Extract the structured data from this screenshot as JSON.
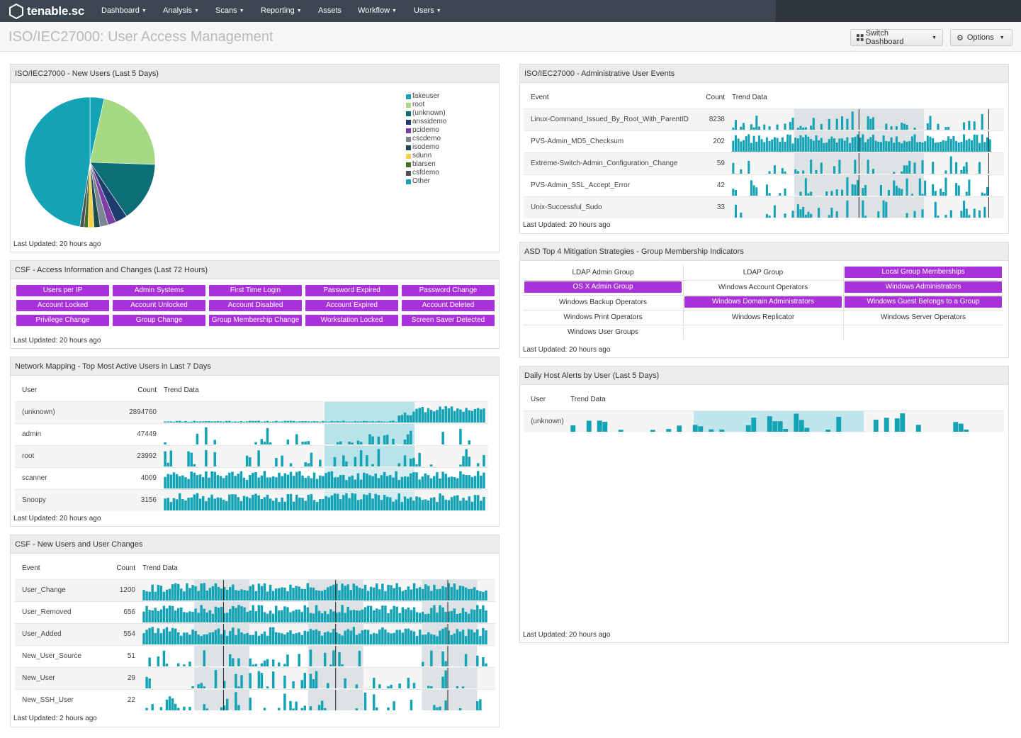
{
  "app": {
    "name": "tenable.sc"
  },
  "nav": [
    {
      "label": "Dashboard",
      "dropdown": true
    },
    {
      "label": "Analysis",
      "dropdown": true
    },
    {
      "label": "Scans",
      "dropdown": true
    },
    {
      "label": "Reporting",
      "dropdown": true
    },
    {
      "label": "Assets",
      "dropdown": false
    },
    {
      "label": "Workflow",
      "dropdown": true
    },
    {
      "label": "Users",
      "dropdown": true
    }
  ],
  "header": {
    "title": "ISO/IEC27000: User Access Management",
    "switch_label": "Switch Dashboard",
    "options_label": "Options"
  },
  "colors": {
    "accent_teal": "#14a3b4",
    "highlight_purple": "#a831d9",
    "nav_bg": "#3c4650"
  },
  "panels": {
    "new_users": {
      "title": "ISO/IEC27000 - New Users (Last 5 Days)",
      "updated": "Last Updated: 20 hours ago",
      "chart_data": {
        "type": "pie",
        "title": "",
        "series": [
          {
            "name": "fakeuser",
            "value": 3.5,
            "color": "#14a3b4"
          },
          {
            "name": "root",
            "value": 22,
            "color": "#a6d983"
          },
          {
            "name": "(unknown)",
            "value": 15,
            "color": "#0e6e77"
          },
          {
            "name": "anssidemo",
            "value": 3,
            "color": "#1e3d6e"
          },
          {
            "name": "pcidemo",
            "value": 2,
            "color": "#7c3fa6"
          },
          {
            "name": "cscdemo",
            "value": 2,
            "color": "#7a8791"
          },
          {
            "name": "isodemo",
            "value": 1.5,
            "color": "#1d4c4c"
          },
          {
            "name": "sdunn",
            "value": 1.5,
            "color": "#f2d24a"
          },
          {
            "name": "blarsen",
            "value": 1,
            "color": "#4a6e27"
          },
          {
            "name": "csfdemo",
            "value": 1,
            "color": "#4b4f58"
          },
          {
            "name": "Other",
            "value": 47.5,
            "color": "#14a3b4"
          }
        ]
      }
    },
    "csf_access": {
      "title": "CSF - Access Information and Changes (Last 72 Hours)",
      "updated": "Last Updated: 20 hours ago",
      "buttons": [
        "Users per IP",
        "Admin Systems",
        "First Time Login",
        "Password Expired",
        "Password Change",
        "Account Locked",
        "Account Unlocked",
        "Account Disabled",
        "Account Expired",
        "Account Deleted",
        "Privilege Change",
        "Group Change",
        "Group Membership Change",
        "Workstation Locked",
        "Screen Saver Detected"
      ]
    },
    "network_mapping": {
      "title": "Network Mapping - Top Most Active Users in Last 7 Days",
      "updated": "Last Updated: 20 hours ago",
      "headers": [
        "User",
        "Count",
        "Trend Data"
      ],
      "rows": [
        {
          "label": "(unknown)",
          "count": "2894760"
        },
        {
          "label": "admin",
          "count": "47449"
        },
        {
          "label": "root",
          "count": "23992"
        },
        {
          "label": "scanner",
          "count": "4009"
        },
        {
          "label": "Snoopy",
          "count": "3156"
        }
      ]
    },
    "csf_new_users": {
      "title": "CSF - New Users and User Changes",
      "updated": "Last Updated: 2 hours ago",
      "headers": [
        "Event",
        "Count",
        "Trend Data"
      ],
      "rows": [
        {
          "label": "User_Change",
          "count": "1200"
        },
        {
          "label": "User_Removed",
          "count": "656"
        },
        {
          "label": "User_Added",
          "count": "554"
        },
        {
          "label": "New_User_Source",
          "count": "51"
        },
        {
          "label": "New_User",
          "count": "29"
        },
        {
          "label": "New_SSH_User",
          "count": "22"
        }
      ]
    },
    "admin_events": {
      "title": "ISO/IEC27000 - Administrative User Events",
      "updated": "Last Updated: 20 hours ago",
      "headers": [
        "Event",
        "Count",
        "Trend Data"
      ],
      "rows": [
        {
          "label": "Linux-Command_Issued_By_Root_With_ParentID",
          "count": "8238"
        },
        {
          "label": "PVS-Admin_MD5_Checksum",
          "count": "202"
        },
        {
          "label": "Extreme-Switch-Admin_Configuration_Change",
          "count": "59"
        },
        {
          "label": "PVS-Admin_SSL_Accept_Error",
          "count": "42"
        },
        {
          "label": "Unix-Successful_Sudo",
          "count": "33"
        }
      ]
    },
    "asd": {
      "title": "ASD Top 4 Mitigation Strategies - Group Membership Indicators",
      "updated": "Last Updated: 20 hours ago",
      "cells": [
        {
          "label": "LDAP Admin Group",
          "hl": false
        },
        {
          "label": "LDAP Group",
          "hl": false
        },
        {
          "label": "Local Group Memberships",
          "hl": true
        },
        {
          "label": "OS X Admin Group",
          "hl": true
        },
        {
          "label": "Windows Account Operators",
          "hl": false
        },
        {
          "label": "Windows Administrators",
          "hl": true
        },
        {
          "label": "Windows Backup Operators",
          "hl": false
        },
        {
          "label": "Windows Domain Administrators",
          "hl": true
        },
        {
          "label": "Windows Guest Belongs to a Group",
          "hl": true
        },
        {
          "label": "Windows Print Operators",
          "hl": false
        },
        {
          "label": "Windows Replicator",
          "hl": false
        },
        {
          "label": "Windows Server Operators",
          "hl": false
        },
        {
          "label": "Windows User Groups",
          "hl": false
        }
      ]
    },
    "daily_host": {
      "title": "Daily Host Alerts by User (Last 5 Days)",
      "updated": "Last Updated: 20 hours ago",
      "headers": [
        "User",
        "Trend Data"
      ],
      "rows": [
        {
          "label": "(unknown)"
        }
      ]
    }
  }
}
